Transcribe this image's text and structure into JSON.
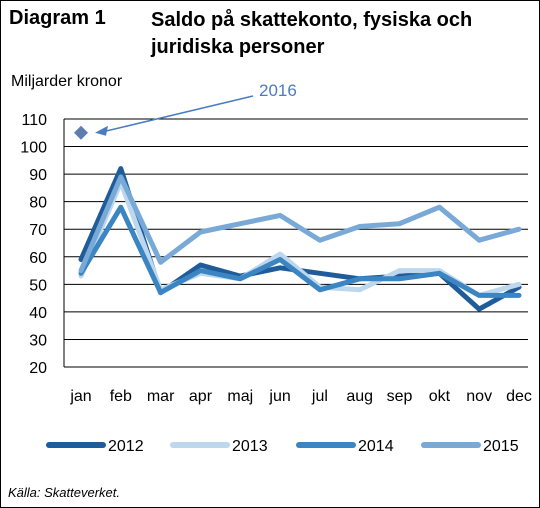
{
  "title": {
    "label": "Diagram 1",
    "text": "Saldo på skattekonto, fysiska och juridiska personer"
  },
  "unit_label": "Miljarder kronor",
  "source": "Källa: Skatteverket.",
  "chart_data": {
    "type": "line",
    "categories": [
      "jan",
      "feb",
      "mar",
      "apr",
      "maj",
      "jun",
      "jul",
      "aug",
      "sep",
      "okt",
      "nov",
      "dec"
    ],
    "ylim": [
      20,
      110
    ],
    "yticks": [
      20,
      30,
      40,
      50,
      60,
      70,
      80,
      90,
      100,
      110
    ],
    "grid": "horizontal",
    "legend_position": "bottom",
    "series": [
      {
        "name": "2012",
        "color": "#1f5c99",
        "values": [
          59,
          92,
          47,
          57,
          53,
          56,
          54,
          52,
          53,
          54,
          41,
          49
        ]
      },
      {
        "name": "2013",
        "color": "#bcd7ee",
        "values": [
          53,
          87,
          48,
          54,
          52,
          61,
          49,
          48,
          55,
          55,
          46,
          50
        ]
      },
      {
        "name": "2014",
        "color": "#3a85c2",
        "values": [
          54,
          78,
          47,
          55,
          52,
          59,
          48,
          52,
          52,
          54,
          46,
          46
        ]
      },
      {
        "name": "2015",
        "color": "#79a9d6",
        "values": [
          55,
          89,
          58,
          69,
          72,
          75,
          66,
          71,
          72,
          78,
          66,
          70
        ]
      }
    ],
    "points": [
      {
        "label": "2016",
        "category": "jan",
        "value": 105,
        "color": "#5b7db0"
      }
    ],
    "annotation": {
      "text": "2016",
      "color": "#4a7cc0",
      "target_category": "jan",
      "target_value": 105
    }
  }
}
